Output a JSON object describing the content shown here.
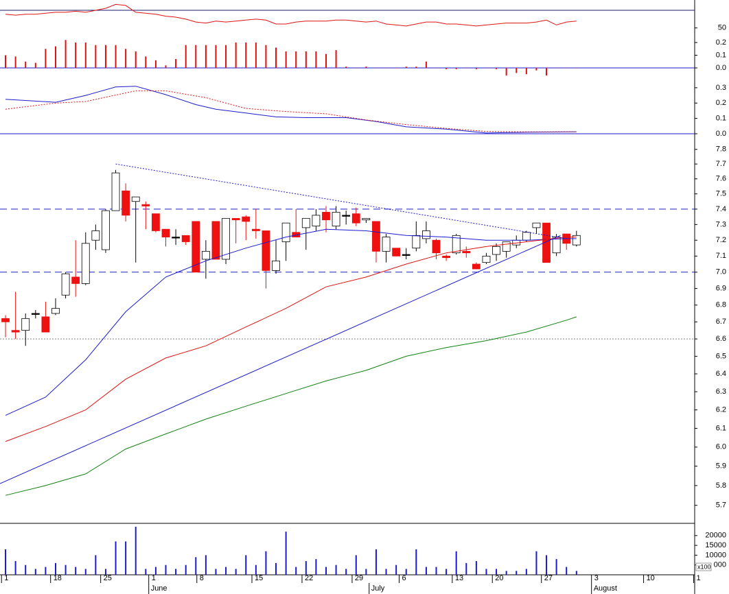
{
  "chart_data": [
    {
      "type": "line",
      "xlim": [
        -0.55,
        68.8
      ],
      "ylim": [
        40,
        75
      ],
      "yticks": [
        50
      ],
      "hlines": [
        {
          "value": 68,
          "color": "#1a1a6e",
          "dash": "solid"
        }
      ],
      "series": [
        {
          "color": "#e01010",
          "values": [
            64,
            63,
            64,
            64,
            65,
            66,
            66,
            67,
            66,
            68,
            70,
            74,
            73,
            66,
            65,
            64,
            62,
            61,
            59,
            56,
            55,
            57,
            56,
            57,
            58,
            59,
            58,
            54,
            54,
            56,
            57,
            57,
            57,
            58,
            58,
            57,
            56,
            57,
            54,
            53,
            52,
            54,
            56,
            56,
            54,
            54,
            53,
            52,
            53,
            54,
            55,
            55,
            55,
            56,
            58,
            53,
            56,
            57
          ]
        }
      ]
    },
    {
      "type": "bar",
      "xlim": [
        -0.55,
        68.8
      ],
      "ylim": [
        -0.08,
        0.26
      ],
      "color": "#e01010",
      "yticks": [
        0.2,
        0.1,
        {
          "value": 0,
          "label": "0.0"
        }
      ],
      "hlines": [
        {
          "value": 0,
          "color": "#1a1ad0",
          "dash": "solid"
        }
      ],
      "values": [
        0.1,
        0.09,
        0.05,
        0.04,
        0.15,
        0.17,
        0.22,
        0.2,
        0.2,
        0.18,
        0.18,
        0.18,
        0.15,
        0.13,
        0.09,
        0.06,
        0.02,
        0.07,
        0.18,
        0.18,
        0.18,
        0.18,
        0.18,
        0.2,
        0.2,
        0.2,
        0.18,
        0.16,
        0.13,
        0.13,
        0.13,
        0.13,
        0.11,
        0.14,
        0.01,
        0,
        0.01,
        0,
        0,
        0,
        0.01,
        0.01,
        0.05,
        0,
        -0.01,
        -0.01,
        0,
        -0.01,
        0,
        -0.01,
        -0.06,
        -0.04,
        -0.05,
        -0.02,
        -0.06,
        0,
        0,
        0
      ]
    },
    {
      "type": "line",
      "xlim": [
        -0.55,
        68.8
      ],
      "ylim": [
        0,
        0.38
      ],
      "yticks": [
        0.3,
        0.2,
        0.1,
        {
          "value": 0,
          "label": "0.0"
        }
      ],
      "hlines": [
        {
          "value": 0,
          "color": "#1a1ad0",
          "dash": "solid"
        }
      ],
      "series": [
        {
          "color": "#1a1ad0",
          "dash": "solid",
          "x": [
            0,
            5,
            8,
            11,
            13,
            16,
            19,
            21,
            24,
            27,
            30,
            34,
            37,
            40,
            44,
            48,
            52,
            57
          ],
          "values": [
            0.225,
            0.205,
            0.25,
            0.305,
            0.31,
            0.255,
            0.19,
            0.16,
            0.135,
            0.11,
            0.105,
            0.105,
            0.08,
            0.045,
            0.03,
            0.005,
            0.01,
            0.013
          ]
        },
        {
          "color": "#e01010",
          "dash": "dotted",
          "x": [
            0,
            5,
            8,
            13,
            16,
            20,
            24,
            28,
            32,
            36,
            40,
            44,
            48,
            52,
            57
          ],
          "values": [
            0.16,
            0.2,
            0.21,
            0.28,
            0.28,
            0.235,
            0.165,
            0.145,
            0.13,
            0.09,
            0.06,
            0.035,
            0.015,
            0.012,
            0.013
          ]
        }
      ]
    },
    {
      "type": "candlestick",
      "log": true,
      "xlim": [
        -0.55,
        68.8
      ],
      "ylim": [
        5.61,
        7.87
      ],
      "yticks": [
        7.8,
        7.7,
        7.6,
        7.5,
        7.4,
        7.3,
        7.2,
        7.1,
        {
          "value": 7.0,
          "label": "7.0"
        },
        6.9,
        6.8,
        6.7,
        6.6,
        6.5,
        6.4,
        6.3,
        6.2,
        6.1,
        {
          "value": 6.0,
          "label": "6.0"
        },
        5.9,
        5.8,
        5.7
      ],
      "up_color": "#ffffff",
      "down_color": "#ee1111",
      "open": [
        6.72,
        6.65,
        6.65,
        6.75,
        6.73,
        6.75,
        6.86,
        6.97,
        6.93,
        7.2,
        7.14,
        7.39,
        7.52,
        7.45,
        7.43,
        7.37,
        7.27,
        7.22,
        7.23,
        7.32,
        7.08,
        7.32,
        7.08,
        7.34,
        7.35,
        7.27,
        7.26,
        7.01,
        7.19,
        7.25,
        7.28,
        7.29,
        7.38,
        7.29,
        7.36,
        7.37,
        7.33,
        7.32,
        7.13,
        7.15,
        7.11,
        7.15,
        7.21,
        7.2,
        7.1,
        7.12,
        7.13,
        7.05,
        7.06,
        7.11,
        7.13,
        7.17,
        7.2,
        7.28,
        7.31,
        7.12,
        7.24,
        7.17
      ],
      "high": [
        6.74,
        6.88,
        6.75,
        6.77,
        6.82,
        6.84,
        7.0,
        7.2,
        7.25,
        7.3,
        7.4,
        7.66,
        7.57,
        7.48,
        7.45,
        7.37,
        7.27,
        7.27,
        7.23,
        7.32,
        7.2,
        7.32,
        7.34,
        7.34,
        7.36,
        7.4,
        7.26,
        7.2,
        7.31,
        7.4,
        7.34,
        7.4,
        7.42,
        7.42,
        7.39,
        7.41,
        7.34,
        7.32,
        7.24,
        7.15,
        7.15,
        7.32,
        7.32,
        7.21,
        7.11,
        7.24,
        7.16,
        7.06,
        7.12,
        7.18,
        7.19,
        7.23,
        7.26,
        7.31,
        7.31,
        7.24,
        7.24,
        7.26
      ],
      "low": [
        6.61,
        6.6,
        6.56,
        6.72,
        6.64,
        6.74,
        6.84,
        6.85,
        6.92,
        7.14,
        7.12,
        7.39,
        7.32,
        7.06,
        7.27,
        7.25,
        7.16,
        7.17,
        7.17,
        7.0,
        6.96,
        7.08,
        7.05,
        7.18,
        7.2,
        7.21,
        6.9,
        6.99,
        7.07,
        7.22,
        7.14,
        7.26,
        7.25,
        7.27,
        7.3,
        7.29,
        7.31,
        7.06,
        7.06,
        7.1,
        7.08,
        7.13,
        7.18,
        7.08,
        7.07,
        7.11,
        7.09,
        7.02,
        7.05,
        7.07,
        7.09,
        7.15,
        7.19,
        7.24,
        7.06,
        7.1,
        7.14,
        7.16
      ],
      "close": [
        6.7,
        6.64,
        6.72,
        6.75,
        6.64,
        6.78,
        6.99,
        6.93,
        7.18,
        7.26,
        7.39,
        7.64,
        7.36,
        7.48,
        7.42,
        7.26,
        7.22,
        7.22,
        7.19,
        7.0,
        7.13,
        7.08,
        7.34,
        7.33,
        7.32,
        7.26,
        7.01,
        7.07,
        7.31,
        7.22,
        7.34,
        7.36,
        7.33,
        7.38,
        7.36,
        7.31,
        7.34,
        7.13,
        7.22,
        7.1,
        7.11,
        7.23,
        7.26,
        7.12,
        7.09,
        7.23,
        7.12,
        7.02,
        7.1,
        7.16,
        7.19,
        7.2,
        7.25,
        7.31,
        7.06,
        7.22,
        7.18,
        7.23
      ],
      "hlines": [
        {
          "value": 7.4,
          "color": "#1a1ad0",
          "dash": "dashed"
        },
        {
          "value": 7.0,
          "color": "#1a1ad0",
          "dash": "dashed"
        },
        {
          "value": 6.6,
          "color": "#888888",
          "dash": "dotted"
        }
      ],
      "series": [
        {
          "color": "#1a1ad0",
          "dash": "solid",
          "x": [
            0,
            4,
            8,
            12,
            16,
            20,
            24,
            28,
            32,
            36,
            40,
            44,
            48,
            52,
            56,
            57
          ],
          "values": [
            6.17,
            6.27,
            6.48,
            6.76,
            6.97,
            7.07,
            7.15,
            7.22,
            7.27,
            7.26,
            7.23,
            7.22,
            7.2,
            7.2,
            7.21,
            7.21
          ]
        },
        {
          "color": "#e01010",
          "dash": "solid",
          "x": [
            0,
            4,
            8,
            12,
            16,
            20,
            24,
            28,
            32,
            36,
            40,
            44,
            48,
            52,
            56,
            57
          ],
          "values": [
            6.03,
            6.11,
            6.2,
            6.37,
            6.49,
            6.56,
            6.67,
            6.78,
            6.91,
            6.97,
            7.05,
            7.12,
            7.16,
            7.19,
            7.22,
            7.22
          ]
        },
        {
          "color": "#108010",
          "dash": "solid",
          "x": [
            0,
            4,
            8,
            12,
            16,
            20,
            24,
            28,
            32,
            36,
            40,
            44,
            48,
            52,
            56,
            57
          ],
          "values": [
            5.75,
            5.8,
            5.86,
            5.99,
            6.07,
            6.15,
            6.22,
            6.29,
            6.36,
            6.42,
            6.5,
            6.55,
            6.59,
            6.64,
            6.71,
            6.73
          ]
        },
        {
          "color": "#1a1ad0",
          "dash": "solid",
          "x": [
            -0.55,
            55.4
          ],
          "values": [
            5.81,
            7.23
          ]
        },
        {
          "color": "#1a1ad0",
          "dash": "dotted",
          "x": [
            11,
            56
          ],
          "values": [
            7.7,
            7.21
          ]
        }
      ]
    },
    {
      "type": "bar",
      "xlim": [
        -0.55,
        68.8
      ],
      "ylim": [
        0,
        25000
      ],
      "color": "#1a1ad0",
      "yticks": [
        20000,
        15000,
        10000,
        {
          "value": 5000,
          "label": "000"
        }
      ],
      "unit_label": "x100",
      "values": [
        13000,
        7000,
        5000,
        3000,
        4000,
        6000,
        5000,
        4000,
        3000,
        10000,
        3000,
        17000,
        17000,
        24500,
        3000,
        4000,
        5000,
        3000,
        5000,
        9000,
        10000,
        3000,
        4000,
        3000,
        10000,
        5000,
        12000,
        6000,
        22000,
        4000,
        7000,
        8000,
        4000,
        5000,
        3000,
        10000,
        3000,
        13000,
        3000,
        5000,
        3000,
        13000,
        4000,
        4000,
        3000,
        12000,
        6000,
        7000,
        3000,
        3000,
        2000,
        2000,
        3000,
        12000,
        10000,
        8000,
        4000,
        2000
      ],
      "xticks": [
        {
          "value": -0.4,
          "label": "1"
        },
        {
          "value": 4.5,
          "label": "18"
        },
        {
          "value": 9.5,
          "label": "25"
        },
        {
          "value": 14.3,
          "label": "1"
        },
        {
          "value": 19.1,
          "label": "8"
        },
        {
          "value": 24.6,
          "label": "15"
        },
        {
          "value": 29.6,
          "label": "22"
        },
        {
          "value": 34.6,
          "label": "29"
        },
        {
          "value": 39.3,
          "label": "6"
        },
        {
          "value": 44.6,
          "label": "13"
        },
        {
          "value": 48.6,
          "label": "20"
        },
        {
          "value": 53.5,
          "label": "27"
        },
        {
          "value": 58.5,
          "label": "3"
        },
        {
          "value": 63.7,
          "label": "10"
        },
        {
          "value": 68.7,
          "label": "1"
        }
      ],
      "month_ticks": [
        {
          "value": 14.3,
          "label": "June"
        },
        {
          "value": 36.3,
          "label": "July"
        },
        {
          "value": 58.5,
          "label": "August"
        }
      ]
    }
  ]
}
